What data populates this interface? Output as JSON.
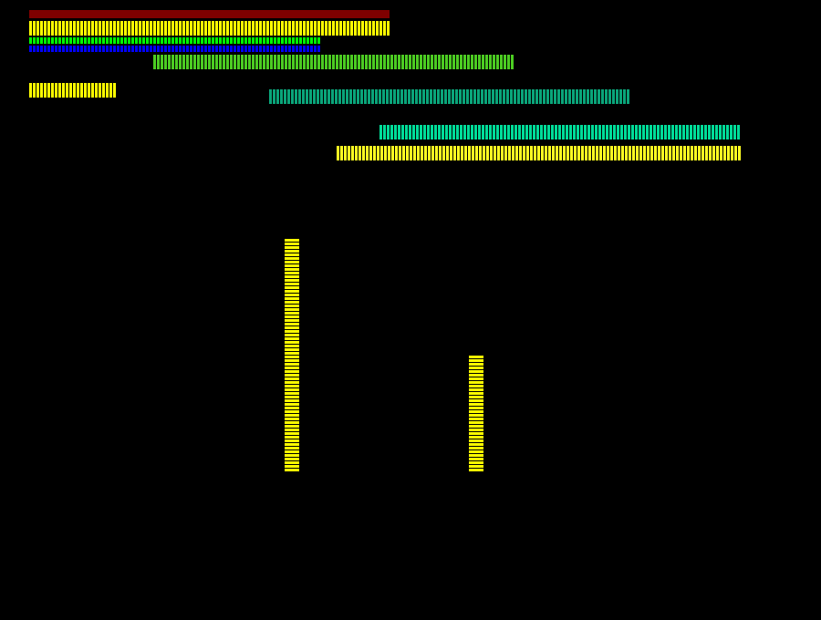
{
  "bars": [
    {
      "name": "dark-red-bar",
      "color": "#7f0000",
      "pattern": "solid"
    },
    {
      "name": "yellow-bar-top",
      "color": "#ffff00",
      "pattern": "striped"
    },
    {
      "name": "green-bar",
      "color": "#00ff00",
      "pattern": "striped"
    },
    {
      "name": "blue-bar",
      "color": "#0000ff",
      "pattern": "striped"
    },
    {
      "name": "lime-bar",
      "color": "#4ccc22",
      "pattern": "striped"
    },
    {
      "name": "yellow-bar-short",
      "color": "#ffff00",
      "pattern": "striped"
    },
    {
      "name": "teal-bar",
      "color": "#0aa57a",
      "pattern": "striped"
    },
    {
      "name": "aqua-green-bar",
      "color": "#00dd99",
      "pattern": "striped"
    },
    {
      "name": "yellow-bar-right",
      "color": "#ffff22",
      "pattern": "striped"
    },
    {
      "name": "yellow-column-tall",
      "color": "#ffff00",
      "pattern": "striped"
    },
    {
      "name": "yellow-column-short",
      "color": "#ffff00",
      "pattern": "striped"
    }
  ]
}
